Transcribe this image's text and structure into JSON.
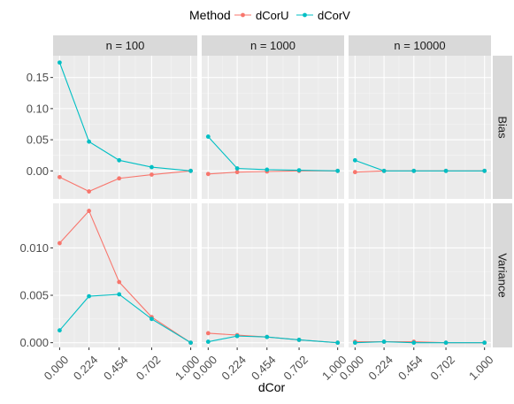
{
  "chart_data": {
    "type": "line",
    "xlabel": "dCor",
    "x": [
      0.0,
      0.224,
      0.454,
      0.702,
      1.0
    ],
    "x_tick_labels": [
      "0.000",
      "0.224",
      "0.454",
      "0.702",
      "1.000"
    ],
    "legend": {
      "title": "Method",
      "position": "top",
      "entries": [
        {
          "name": "dCorU",
          "color": "#F8766D"
        },
        {
          "name": "dCorV",
          "color": "#00BFC4"
        }
      ]
    },
    "columns": [
      "n = 100",
      "n = 1000",
      "n = 10000"
    ],
    "rows": [
      {
        "label": "Bias",
        "ylim": [
          -0.045,
          0.185
        ],
        "y_ticks": [
          0.0,
          0.05,
          0.1,
          0.15
        ],
        "y_tick_labels": [
          "0.00",
          "0.05",
          "0.10",
          "0.15"
        ],
        "panels": [
          {
            "series": [
              {
                "name": "dCorU",
                "values": [
                  -0.01,
                  -0.033,
                  -0.012,
                  -0.006,
                  0.0
                ]
              },
              {
                "name": "dCorV",
                "values": [
                  0.174,
                  0.047,
                  0.017,
                  0.006,
                  0.0
                ]
              }
            ]
          },
          {
            "series": [
              {
                "name": "dCorU",
                "values": [
                  -0.005,
                  -0.002,
                  -0.001,
                  0.0,
                  0.0
                ]
              },
              {
                "name": "dCorV",
                "values": [
                  0.055,
                  0.004,
                  0.002,
                  0.001,
                  0.0
                ]
              }
            ]
          },
          {
            "series": [
              {
                "name": "dCorU",
                "values": [
                  -0.002,
                  0.0,
                  0.0,
                  0.0,
                  0.0
                ]
              },
              {
                "name": "dCorV",
                "values": [
                  0.017,
                  0.0,
                  0.0,
                  0.0,
                  0.0
                ]
              }
            ]
          }
        ]
      },
      {
        "label": "Variance",
        "ylim": [
          -0.0005,
          0.0147
        ],
        "y_ticks": [
          0.0,
          0.005,
          0.01
        ],
        "y_tick_labels": [
          "0.000",
          "0.005",
          "0.010"
        ],
        "panels": [
          {
            "series": [
              {
                "name": "dCorU",
                "values": [
                  0.0105,
                  0.0139,
                  0.0064,
                  0.0027,
                  0.0
                ]
              },
              {
                "name": "dCorV",
                "values": [
                  0.0013,
                  0.0049,
                  0.0051,
                  0.0025,
                  0.0
                ]
              }
            ]
          },
          {
            "series": [
              {
                "name": "dCorU",
                "values": [
                  0.001,
                  0.0008,
                  0.0006,
                  0.0003,
                  0.0
                ]
              },
              {
                "name": "dCorV",
                "values": [
                  0.0001,
                  0.0007,
                  0.0006,
                  0.0003,
                  0.0
                ]
              }
            ]
          },
          {
            "series": [
              {
                "name": "dCorU",
                "values": [
                  0.0001,
                  0.0001,
                  0.0001,
                  0.0,
                  0.0
                ]
              },
              {
                "name": "dCorV",
                "values": [
                  0.0,
                  0.0001,
                  0.0,
                  0.0,
                  0.0
                ]
              }
            ]
          }
        ]
      }
    ]
  }
}
